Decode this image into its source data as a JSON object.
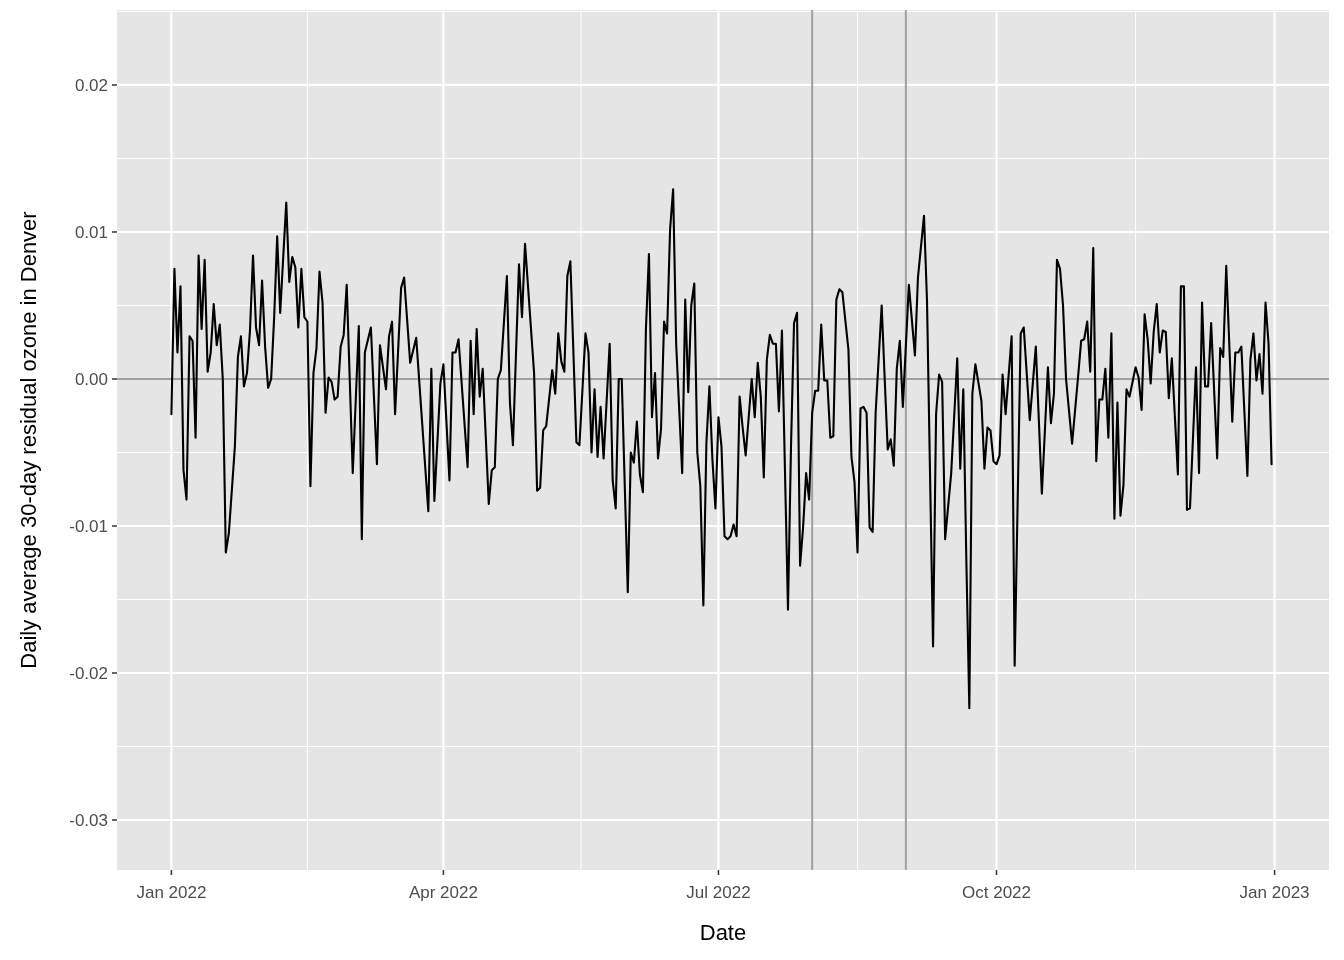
{
  "chart_data": {
    "type": "line",
    "xlabel": "Date",
    "ylabel": "Daily average 30-day residual ozone in Denver",
    "xlim": [
      "2021-12-14",
      "2023-01-19"
    ],
    "ylim": [
      -0.0334,
      0.0251
    ],
    "xticks": [
      {
        "value": "2022-01-01",
        "label": "Jan 2022"
      },
      {
        "value": "2022-04-01",
        "label": "Apr 2022"
      },
      {
        "value": "2022-07-01",
        "label": "Jul 2022"
      },
      {
        "value": "2022-10-01",
        "label": "Oct 2022"
      },
      {
        "value": "2023-01-01",
        "label": "Jan 2023"
      }
    ],
    "yticks": [
      {
        "value": -0.03,
        "label": "-0.03"
      },
      {
        "value": -0.02,
        "label": "-0.02"
      },
      {
        "value": -0.01,
        "label": "-0.01"
      },
      {
        "value": 0,
        "label": "0.00"
      },
      {
        "value": 0.01,
        "label": "0.01"
      },
      {
        "value": 0.02,
        "label": "0.02"
      }
    ],
    "grid": true,
    "marker": "none",
    "line_style": "solid",
    "ref_lines": [
      {
        "axis": "y",
        "value": 0,
        "color": "#a0a0a0"
      },
      {
        "axis": "x",
        "value": "2022-08-01",
        "color": "#a0a0a0"
      },
      {
        "axis": "x",
        "value": "2022-09-01",
        "color": "#a0a0a0"
      }
    ],
    "x": [
      "2022-01-01",
      "2022-01-02",
      "2022-01-03",
      "2022-01-04",
      "2022-01-05",
      "2022-01-06",
      "2022-01-07",
      "2022-01-08",
      "2022-01-09",
      "2022-01-10",
      "2022-01-11",
      "2022-01-12",
      "2022-01-13",
      "2022-01-14",
      "2022-01-15",
      "2022-01-16",
      "2022-01-17",
      "2022-01-18",
      "2022-01-19",
      "2022-01-20",
      "2022-01-22",
      "2022-01-23",
      "2022-01-24",
      "2022-01-25",
      "2022-01-26",
      "2022-01-27",
      "2022-01-28",
      "2022-01-29",
      "2022-01-30",
      "2022-01-31",
      "2022-02-01",
      "2022-02-02",
      "2022-02-03",
      "2022-02-04",
      "2022-02-05",
      "2022-02-06",
      "2022-02-07",
      "2022-02-08",
      "2022-02-09",
      "2022-02-10",
      "2022-02-11",
      "2022-02-12",
      "2022-02-13",
      "2022-02-14",
      "2022-02-15",
      "2022-02-16",
      "2022-02-17",
      "2022-02-18",
      "2022-02-19",
      "2022-02-20",
      "2022-02-21",
      "2022-02-22",
      "2022-02-23",
      "2022-02-24",
      "2022-02-25",
      "2022-02-26",
      "2022-02-27",
      "2022-02-28",
      "2022-03-02",
      "2022-03-04",
      "2022-03-05",
      "2022-03-06",
      "2022-03-08",
      "2022-03-10",
      "2022-03-11",
      "2022-03-13",
      "2022-03-14",
      "2022-03-15",
      "2022-03-16",
      "2022-03-18",
      "2022-03-19",
      "2022-03-21",
      "2022-03-23",
      "2022-03-27",
      "2022-03-28",
      "2022-03-29",
      "2022-03-31",
      "2022-04-01",
      "2022-04-03",
      "2022-04-04",
      "2022-04-05",
      "2022-04-06",
      "2022-04-09",
      "2022-04-10",
      "2022-04-11",
      "2022-04-12",
      "2022-04-13",
      "2022-04-14",
      "2022-04-16",
      "2022-04-17",
      "2022-04-18",
      "2022-04-19",
      "2022-04-20",
      "2022-04-22",
      "2022-04-23",
      "2022-04-24",
      "2022-04-26",
      "2022-04-27",
      "2022-04-28",
      "2022-05-01",
      "2022-05-02",
      "2022-05-03",
      "2022-05-04",
      "2022-05-05",
      "2022-05-07",
      "2022-05-08",
      "2022-05-09",
      "2022-05-10",
      "2022-05-11",
      "2022-05-12",
      "2022-05-13",
      "2022-05-15",
      "2022-05-16",
      "2022-05-18",
      "2022-05-19",
      "2022-05-20",
      "2022-05-21",
      "2022-05-22",
      "2022-05-23",
      "2022-05-24",
      "2022-05-26",
      "2022-05-27",
      "2022-05-28",
      "2022-05-29",
      "2022-05-30",
      "2022-06-01",
      "2022-06-02",
      "2022-06-03",
      "2022-06-04",
      "2022-06-05",
      "2022-06-06",
      "2022-06-07",
      "2022-06-08",
      "2022-06-09",
      "2022-06-10",
      "2022-06-11",
      "2022-06-12",
      "2022-06-13",
      "2022-06-14",
      "2022-06-15",
      "2022-06-16",
      "2022-06-17",
      "2022-06-19",
      "2022-06-20",
      "2022-06-21",
      "2022-06-22",
      "2022-06-23",
      "2022-06-24",
      "2022-06-25",
      "2022-06-26",
      "2022-06-27",
      "2022-06-28",
      "2022-06-29",
      "2022-06-30",
      "2022-07-01",
      "2022-07-02",
      "2022-07-03",
      "2022-07-04",
      "2022-07-05",
      "2022-07-06",
      "2022-07-07",
      "2022-07-08",
      "2022-07-09",
      "2022-07-10",
      "2022-07-12",
      "2022-07-13",
      "2022-07-14",
      "2022-07-15",
      "2022-07-16",
      "2022-07-17",
      "2022-07-18",
      "2022-07-19",
      "2022-07-20",
      "2022-07-21",
      "2022-07-22",
      "2022-07-24",
      "2022-07-25",
      "2022-07-26",
      "2022-07-27",
      "2022-07-28",
      "2022-07-29",
      "2022-07-30",
      "2022-07-31",
      "2022-08-01",
      "2022-08-02",
      "2022-08-03",
      "2022-08-04",
      "2022-08-05",
      "2022-08-06",
      "2022-08-07",
      "2022-08-08",
      "2022-08-09",
      "2022-08-10",
      "2022-08-11",
      "2022-08-13",
      "2022-08-14",
      "2022-08-15",
      "2022-08-16",
      "2022-08-17",
      "2022-08-18",
      "2022-08-19",
      "2022-08-20",
      "2022-08-21",
      "2022-08-22",
      "2022-08-24",
      "2022-08-25",
      "2022-08-26",
      "2022-08-27",
      "2022-08-28",
      "2022-08-29",
      "2022-08-30",
      "2022-08-31",
      "2022-09-02",
      "2022-09-04",
      "2022-09-05",
      "2022-09-07",
      "2022-09-08",
      "2022-09-10",
      "2022-09-11",
      "2022-09-12",
      "2022-09-13",
      "2022-09-14",
      "2022-09-16",
      "2022-09-18",
      "2022-09-19",
      "2022-09-20",
      "2022-09-21",
      "2022-09-22",
      "2022-09-23",
      "2022-09-24",
      "2022-09-26",
      "2022-09-27",
      "2022-09-28",
      "2022-09-29",
      "2022-09-30",
      "2022-10-01",
      "2022-10-02",
      "2022-10-03",
      "2022-10-04",
      "2022-10-06",
      "2022-10-07",
      "2022-10-09",
      "2022-10-10",
      "2022-10-12",
      "2022-10-14",
      "2022-10-16",
      "2022-10-18",
      "2022-10-19",
      "2022-10-20",
      "2022-10-21",
      "2022-10-22",
      "2022-10-23",
      "2022-10-24",
      "2022-10-26",
      "2022-10-28",
      "2022-10-29",
      "2022-10-30",
      "2022-10-31",
      "2022-11-01",
      "2022-11-02",
      "2022-11-03",
      "2022-11-04",
      "2022-11-05",
      "2022-11-06",
      "2022-11-07",
      "2022-11-08",
      "2022-11-09",
      "2022-11-10",
      "2022-11-11",
      "2022-11-12",
      "2022-11-13",
      "2022-11-14",
      "2022-11-16",
      "2022-11-17",
      "2022-11-18",
      "2022-11-19",
      "2022-11-20",
      "2022-11-21",
      "2022-11-22",
      "2022-11-23",
      "2022-11-24",
      "2022-11-25",
      "2022-11-26",
      "2022-11-27",
      "2022-11-28",
      "2022-11-30",
      "2022-12-01",
      "2022-12-02",
      "2022-12-03",
      "2022-12-04",
      "2022-12-06",
      "2022-12-07",
      "2022-12-08",
      "2022-12-09",
      "2022-12-10",
      "2022-12-11",
      "2022-12-13",
      "2022-12-14",
      "2022-12-15",
      "2022-12-16",
      "2022-12-18",
      "2022-12-19",
      "2022-12-20",
      "2022-12-21",
      "2022-12-23",
      "2022-12-24",
      "2022-12-25",
      "2022-12-26",
      "2022-12-27",
      "2022-12-28",
      "2022-12-29",
      "2022-12-30",
      "2022-12-31"
    ],
    "series": [
      {
        "color": "#000000",
        "values": [
          -0.0024,
          0.0075,
          0.0018,
          0.0063,
          -0.0062,
          -0.0082,
          0.0029,
          0.0026,
          -0.004,
          0.0084,
          0.0034,
          0.0081,
          0.0005,
          0.0018,
          0.0051,
          0.0023,
          0.0037,
          0,
          -0.0118,
          -0.0105,
          -0.0046,
          0.0015,
          0.0029,
          -0.0005,
          0.0004,
          0.0033,
          0.0084,
          0.0035,
          0.0023,
          0.0067,
          0.0022,
          -0.0006,
          0,
          0.0042,
          0.0097,
          0.0045,
          0.0083,
          0.012,
          0.0066,
          0.0083,
          0.0076,
          0.0035,
          0.0075,
          0.0042,
          0.0039,
          -0.0073,
          0.0004,
          0.0021,
          0.0073,
          0.0052,
          -0.0023,
          0.0001,
          -0.0002,
          -0.0014,
          -0.0012,
          0.0022,
          0.003,
          0.0064,
          -0.0064,
          0.0036,
          -0.0109,
          0.0018,
          0.0035,
          -0.0058,
          0.0023,
          -0.0007,
          0.0029,
          0.0039,
          -0.0024,
          0.0062,
          0.0069,
          0.0011,
          0.0028,
          -0.009,
          0.0007,
          -0.0083,
          -0.0003,
          0.001,
          -0.0069,
          0.0018,
          0.0018,
          0.0027,
          -0.006,
          0.0026,
          -0.0024,
          0.0034,
          -0.0012,
          0.0007,
          -0.0085,
          -0.0062,
          -0.006,
          0,
          0.0006,
          0.007,
          -0.0016,
          -0.0045,
          0.0078,
          0.0042,
          0.0092,
          0.0004,
          -0.0076,
          -0.0074,
          -0.0035,
          -0.0032,
          0.0006,
          -0.001,
          0.0031,
          0.0012,
          0.0005,
          0.007,
          0.008,
          -0.0043,
          -0.0045,
          0.0031,
          0.0018,
          -0.005,
          -0.0007,
          -0.0053,
          -0.0019,
          -0.0054,
          0.0024,
          -0.0069,
          -0.0088,
          0,
          0,
          -0.0145,
          -0.005,
          -0.0057,
          -0.0029,
          -0.0065,
          -0.0077,
          0.0034,
          0.0085,
          -0.0026,
          0.0004,
          -0.0054,
          -0.0034,
          0.0039,
          0.0031,
          0.0102,
          0.0129,
          0.0024,
          -0.0064,
          0.0054,
          -0.0009,
          0.005,
          0.0065,
          -0.005,
          -0.0073,
          -0.0154,
          -0.0044,
          -0.0005,
          -0.0055,
          -0.0088,
          -0.0026,
          -0.0046,
          -0.0107,
          -0.0109,
          -0.0107,
          -0.0099,
          -0.0107,
          -0.0012,
          -0.0033,
          -0.0052,
          0,
          -0.0026,
          0.0011,
          -0.0012,
          -0.0067,
          0.0013,
          0.003,
          0.0024,
          0.0024,
          -0.0022,
          0.0033,
          -0.0157,
          -0.0046,
          0.0038,
          0.0045,
          -0.0127,
          -0.0101,
          -0.0064,
          -0.0082,
          -0.0023,
          -0.0008,
          -0.0008,
          0.0037,
          -0.0001,
          -0.0001,
          -0.004,
          -0.0039,
          0.0054,
          0.0061,
          0.0059,
          0.002,
          -0.0053,
          -0.007,
          -0.0118,
          -0.002,
          -0.0019,
          -0.0023,
          -0.0101,
          -0.0104,
          -0.0023,
          0.005,
          0,
          -0.0048,
          -0.0041,
          -0.0059,
          0.0007,
          0.0026,
          -0.0019,
          0.0064,
          0.0016,
          0.0069,
          0.0111,
          0.0053,
          -0.0182,
          -0.0024,
          0.0003,
          -0.0002,
          -0.0109,
          -0.0064,
          0.0014,
          -0.0061,
          -0.0007,
          -0.0122,
          -0.0224,
          -0.001,
          0.001,
          -0.0015,
          -0.0061,
          -0.0033,
          -0.0035,
          -0.0056,
          -0.0058,
          -0.0052,
          0.0003,
          -0.0024,
          0.0029,
          -0.0195,
          0.0031,
          0.0035,
          -0.0028,
          0.0022,
          -0.0078,
          0.0008,
          -0.003,
          -0.001,
          0.0081,
          0.0075,
          0.005,
          0,
          -0.0044,
          0.0002,
          0.0026,
          0.0027,
          0.0039,
          0.0005,
          0.0089,
          -0.0056,
          -0.0014,
          -0.0014,
          0.0007,
          -0.004,
          0.0031,
          -0.0095,
          -0.0016,
          -0.0093,
          -0.0072,
          -0.0007,
          -0.0012,
          0.0008,
          0.0001,
          -0.0021,
          0.0044,
          0.0027,
          -0.0003,
          0.0032,
          0.0051,
          0.0018,
          0.0033,
          0.0032,
          -0.0013,
          0.0014,
          -0.0065,
          0.0063,
          0.0063,
          -0.0089,
          -0.0088,
          0.0008,
          -0.0064,
          0.0052,
          -0.0005,
          -0.0005,
          0.0038,
          -0.0054,
          0.0021,
          0.0015,
          0.0077,
          -0.0029,
          0.0018,
          0.0018,
          0.0022,
          -0.0066,
          0.0013,
          0.0031,
          -0.0001,
          0.0017,
          -0.001,
          0.0052,
          0.0024,
          -0.0058
        ]
      }
    ]
  }
}
